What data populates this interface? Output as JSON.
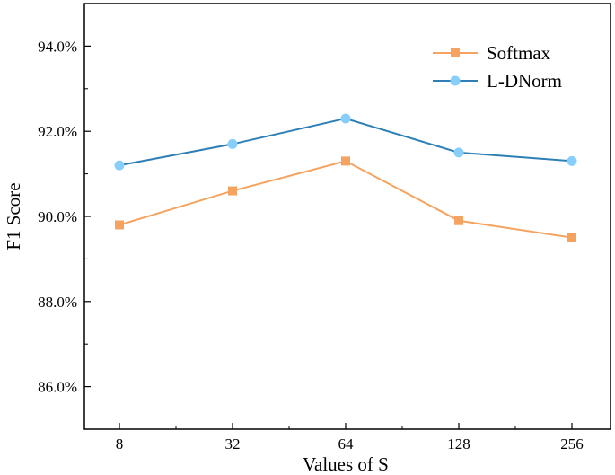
{
  "chart_data": {
    "type": "line",
    "categories": [
      "8",
      "32",
      "64",
      "128",
      "256"
    ],
    "series": [
      {
        "name": "Softmax",
        "values": [
          89.8,
          90.6,
          91.3,
          89.9,
          89.5
        ],
        "color": "#f4a460",
        "marker": "square"
      },
      {
        "name": "L-DNorm",
        "values": [
          91.2,
          91.7,
          92.3,
          91.5,
          91.3
        ],
        "color": "#2e7fb5",
        "marker_color": "#87cefa",
        "marker": "circle"
      }
    ],
    "title": "",
    "xlabel": "Values of S",
    "ylabel": "F1 Score",
    "ylim": [
      85.0,
      95.0
    ],
    "yticks": [
      86.0,
      88.0,
      90.0,
      92.0,
      94.0
    ],
    "ytick_labels": [
      "86.0%",
      "88.0%",
      "90.0%",
      "92.0%",
      "94.0%"
    ],
    "grid": false,
    "legend_position": "top-right"
  }
}
